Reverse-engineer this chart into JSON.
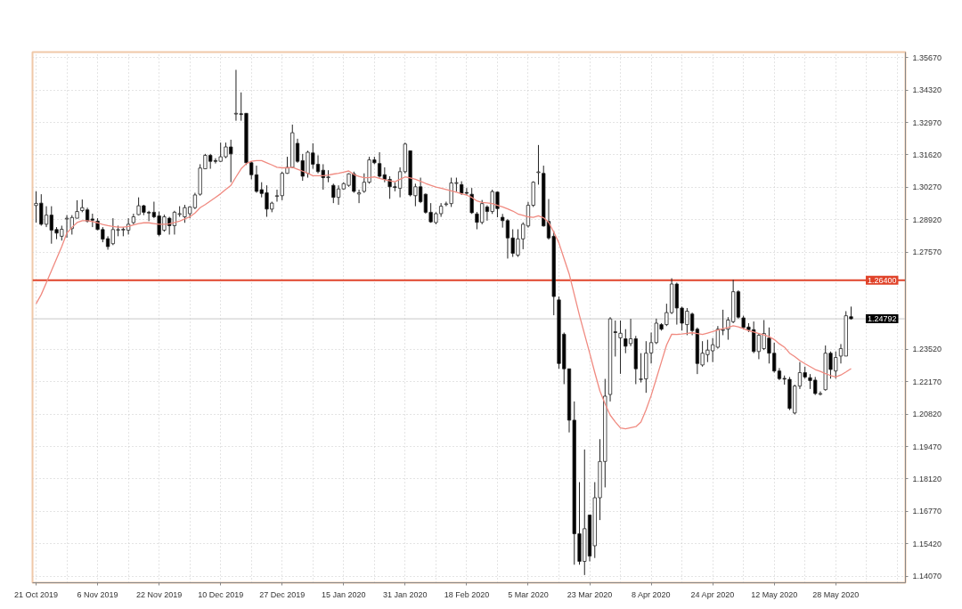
{
  "chart_data": {
    "type": "candlestick",
    "categories": [
      "21 Oct 2019",
      null,
      null,
      null,
      null,
      null,
      null,
      null,
      null,
      null,
      null,
      null,
      "6 Nov 2019",
      null,
      null,
      null,
      null,
      null,
      null,
      null,
      null,
      null,
      null,
      null,
      "22 Nov 2019",
      null,
      null,
      null,
      null,
      null,
      null,
      null,
      null,
      null,
      null,
      null,
      "10 Dec 2019",
      null,
      null,
      null,
      null,
      null,
      null,
      null,
      null,
      null,
      null,
      null,
      "27 Dec 2019",
      null,
      null,
      null,
      null,
      null,
      null,
      null,
      null,
      null,
      null,
      null,
      "15 Jan 2020",
      null,
      null,
      null,
      null,
      null,
      null,
      null,
      null,
      null,
      null,
      null,
      "31 Jan 2020",
      null,
      null,
      null,
      null,
      null,
      null,
      null,
      null,
      null,
      null,
      null,
      "18 Feb 2020",
      null,
      null,
      null,
      null,
      null,
      null,
      null,
      null,
      null,
      null,
      null,
      "5 Mar 2020",
      null,
      null,
      null,
      null,
      null,
      null,
      null,
      null,
      null,
      null,
      null,
      "23 Mar 2020",
      null,
      null,
      null,
      null,
      null,
      null,
      null,
      null,
      null,
      null,
      null,
      "8 Apr 2020",
      null,
      null,
      null,
      null,
      null,
      null,
      null,
      null,
      null,
      null,
      null,
      "24 Apr 2020",
      null,
      null,
      null,
      null,
      null,
      null,
      null,
      null,
      null,
      null,
      null,
      "12 May 2020",
      null,
      null,
      null,
      null,
      null,
      null,
      null,
      null,
      null,
      null,
      null,
      "28 May 2020",
      null,
      null,
      null
    ],
    "ohlc": [
      [
        1.2951,
        1.301,
        1.288,
        1.296
      ],
      [
        1.2961,
        1.2998,
        1.2867,
        1.2873
      ],
      [
        1.2873,
        1.2948,
        1.2861,
        1.2911
      ],
      [
        1.2911,
        1.2948,
        1.2792,
        1.2848
      ],
      [
        1.2851,
        1.2861,
        1.2811,
        1.2836
      ],
      [
        1.2823,
        1.2867,
        1.2805,
        1.2852
      ],
      [
        1.2895,
        1.2911,
        1.2817,
        1.2898
      ],
      [
        1.2855,
        1.2911,
        1.283,
        1.2901
      ],
      [
        1.2898,
        1.2973,
        1.2898,
        1.2926
      ],
      [
        1.293,
        1.2976,
        1.2923,
        1.2942
      ],
      [
        1.2933,
        1.2942,
        1.288,
        1.2886
      ],
      [
        1.2895,
        1.2917,
        1.2861,
        1.289
      ],
      [
        1.2886,
        1.2898,
        1.2848,
        1.2851
      ],
      [
        1.2851,
        1.2861,
        1.2798,
        1.2811
      ],
      [
        1.2813,
        1.2823,
        1.2767,
        1.278
      ],
      [
        1.2792,
        1.2898,
        1.2786,
        1.2851
      ],
      [
        1.2848,
        1.2867,
        1.2823,
        1.2851
      ],
      [
        1.2849,
        1.2861,
        1.2823,
        1.2852
      ],
      [
        1.2848,
        1.2898,
        1.283,
        1.2873
      ],
      [
        1.288,
        1.2917,
        1.2873,
        1.2904
      ],
      [
        1.2913,
        1.2985,
        1.2911,
        1.295
      ],
      [
        1.295,
        1.2954,
        1.2911,
        1.2923
      ],
      [
        1.2923,
        1.2929,
        1.2886,
        1.292
      ],
      [
        1.2923,
        1.2967,
        1.2898,
        1.2904
      ],
      [
        1.2908,
        1.2926,
        1.2823,
        1.283
      ],
      [
        1.2848,
        1.2913,
        1.2842,
        1.2904
      ],
      [
        1.2898,
        1.2904,
        1.283,
        1.2867
      ],
      [
        1.2867,
        1.2929,
        1.283,
        1.2923
      ],
      [
        1.2914,
        1.2948,
        1.2904,
        1.2917
      ],
      [
        1.2904,
        1.2954,
        1.2879,
        1.2942
      ],
      [
        1.2917,
        1.2948,
        1.2898,
        1.2945
      ],
      [
        1.2942,
        1.3004,
        1.2936,
        1.2995
      ],
      [
        1.2998,
        1.3123,
        1.2992,
        1.3107
      ],
      [
        1.3104,
        1.3166,
        1.3104,
        1.316
      ],
      [
        1.316,
        1.3166,
        1.3104,
        1.3135
      ],
      [
        1.3138,
        1.3148,
        1.3126,
        1.3135
      ],
      [
        1.3135,
        1.3213,
        1.3133,
        1.3154
      ],
      [
        1.3154,
        1.3213,
        1.3148,
        1.3195
      ],
      [
        1.3195,
        1.3225,
        1.3048,
        1.3166
      ],
      [
        1.3332,
        1.3516,
        1.3304,
        1.3335
      ],
      [
        1.3333,
        1.3422,
        1.3304,
        1.333
      ],
      [
        1.3335,
        1.3335,
        1.312,
        1.3129
      ],
      [
        1.3129,
        1.3135,
        1.306,
        1.3079
      ],
      [
        1.3079,
        1.3117,
        1.3004,
        1.301
      ],
      [
        1.3017,
        1.3048,
        1.2985,
        1.3001
      ],
      [
        1.3004,
        1.3035,
        1.2904,
        1.2936
      ],
      [
        1.2936,
        1.2967,
        1.2923,
        1.2961
      ],
      [
        1.2989,
        1.3017,
        1.2967,
        1.2992
      ],
      [
        1.2992,
        1.3092,
        1.2973,
        1.3085
      ],
      [
        1.3085,
        1.3154,
        1.3083,
        1.311
      ],
      [
        1.311,
        1.3288,
        1.3107,
        1.3254
      ],
      [
        1.321,
        1.3229,
        1.3129,
        1.3135
      ],
      [
        1.3138,
        1.3166,
        1.3054,
        1.3073
      ],
      [
        1.3085,
        1.3179,
        1.3067,
        1.3173
      ],
      [
        1.317,
        1.321,
        1.3104,
        1.3123
      ],
      [
        1.3123,
        1.316,
        1.3085,
        1.3092
      ],
      [
        1.3098,
        1.3123,
        1.3017,
        1.3067
      ],
      [
        1.3067,
        1.3098,
        1.3048,
        1.307
      ],
      [
        1.3035,
        1.3042,
        1.2961,
        1.2985
      ],
      [
        1.2985,
        1.3035,
        1.2954,
        1.302
      ],
      [
        1.302,
        1.3048,
        1.3017,
        1.3042
      ],
      [
        1.3035,
        1.3085,
        1.3029,
        1.3083
      ],
      [
        1.3083,
        1.3092,
        1.3004,
        1.301
      ],
      [
        1.2999,
        1.3017,
        1.2961,
        1.3004
      ],
      [
        1.301,
        1.3085,
        1.3004,
        1.3048
      ],
      [
        1.3048,
        1.3154,
        1.3042,
        1.3141
      ],
      [
        1.3141,
        1.3154,
        1.3123,
        1.3129
      ],
      [
        1.3126,
        1.3173,
        1.3067,
        1.3073
      ],
      [
        1.3079,
        1.311,
        1.3048,
        1.306
      ],
      [
        1.306,
        1.3073,
        1.2979,
        1.3029
      ],
      [
        1.3029,
        1.3048,
        1.301,
        1.3026
      ],
      [
        1.3023,
        1.311,
        1.2985,
        1.3092
      ],
      [
        1.3092,
        1.3213,
        1.3085,
        1.3207
      ],
      [
        1.3179,
        1.3179,
        1.2989,
        1.2995
      ],
      [
        1.2992,
        1.3042,
        1.2948,
        1.3029
      ],
      [
        1.3029,
        1.3067,
        1.2961,
        1.2967
      ],
      [
        1.2998,
        1.3001,
        1.2917,
        1.2923
      ],
      [
        1.2923,
        1.2961,
        1.2879,
        1.2883
      ],
      [
        1.288,
        1.2923,
        1.2873,
        1.2917
      ],
      [
        1.2917,
        1.2961,
        1.2904,
        1.2948
      ],
      [
        1.2955,
        1.2967,
        1.2948,
        1.2958
      ],
      [
        1.2959,
        1.3067,
        1.2945,
        1.3045
      ],
      [
        1.3043,
        1.3067,
        1.3009,
        1.3046
      ],
      [
        1.3038,
        1.3052,
        1.2995,
        1.3002
      ],
      [
        1.3005,
        1.3024,
        1.2995,
        1.3002
      ],
      [
        1.2998,
        1.3024,
        1.2916,
        1.2921
      ],
      [
        1.2916,
        1.2924,
        1.2852,
        1.2881
      ],
      [
        1.2881,
        1.2974,
        1.2873,
        1.2959
      ],
      [
        1.2945,
        1.2952,
        1.2888,
        1.2926
      ],
      [
        1.2926,
        1.3017,
        1.2916,
        1.3009
      ],
      [
        1.3007,
        1.3009,
        1.2902,
        1.2938
      ],
      [
        1.2902,
        1.2916,
        1.2859,
        1.2888
      ],
      [
        1.2888,
        1.2895,
        1.273,
        1.2816
      ],
      [
        1.2816,
        1.2852,
        1.2737,
        1.2752
      ],
      [
        1.2744,
        1.2852,
        1.2737,
        1.2812
      ],
      [
        1.2812,
        1.2881,
        1.2769,
        1.2873
      ],
      [
        1.2866,
        1.2966,
        1.2859,
        1.2952
      ],
      [
        1.2952,
        1.3052,
        1.2945,
        1.3048
      ],
      [
        1.3088,
        1.3203,
        1.3038,
        1.3091
      ],
      [
        1.3085,
        1.3117,
        1.2863,
        1.2866
      ],
      [
        1.2885,
        1.2978,
        1.2809,
        1.2816
      ],
      [
        1.2823,
        1.2845,
        1.2494,
        1.2572
      ],
      [
        1.2558,
        1.2572,
        1.2271,
        1.2293
      ],
      [
        1.2415,
        1.2422,
        1.2207,
        1.2271
      ],
      [
        1.2271,
        1.2271,
        1.2006,
        1.2057
      ],
      [
        1.2057,
        1.2135,
        1.1455,
        1.1584
      ],
      [
        1.1584,
        1.1799,
        1.1455,
        1.1469
      ],
      [
        1.1469,
        1.1935,
        1.1412,
        1.1605
      ],
      [
        1.1662,
        1.1662,
        1.1469,
        1.1491
      ],
      [
        1.1534,
        1.1799,
        1.1483,
        1.1734
      ],
      [
        1.1734,
        1.1978,
        1.1641,
        1.1885
      ],
      [
        1.1885,
        1.2229,
        1.1777,
        1.2157
      ],
      [
        1.2164,
        1.2486,
        1.2135,
        1.2479
      ],
      [
        1.2425,
        1.2472,
        1.2322,
        1.2422
      ],
      [
        1.24,
        1.2472,
        1.225,
        1.2419
      ],
      [
        1.2396,
        1.2436,
        1.2336,
        1.2365
      ],
      [
        1.2376,
        1.2479,
        1.2365,
        1.2396
      ],
      [
        1.2396,
        1.2408,
        1.2207,
        1.2271
      ],
      [
        1.2226,
        1.2336,
        1.2214,
        1.2229
      ],
      [
        1.2229,
        1.2386,
        1.2171,
        1.2336
      ],
      [
        1.2337,
        1.2422,
        1.2293,
        1.238
      ],
      [
        1.238,
        1.248,
        1.2374,
        1.2461
      ],
      [
        1.2455,
        1.2461,
        1.243,
        1.2436
      ],
      [
        1.2455,
        1.2542,
        1.2449,
        1.2505
      ],
      [
        1.2505,
        1.2648,
        1.2499,
        1.2624
      ],
      [
        1.2624,
        1.263,
        1.2455,
        1.2524
      ],
      [
        1.2524,
        1.253,
        1.243,
        1.2461
      ],
      [
        1.2455,
        1.2524,
        1.2411,
        1.2511
      ],
      [
        1.2499,
        1.2505,
        1.2411,
        1.243
      ],
      [
        1.2436,
        1.2443,
        1.2249,
        1.2293
      ],
      [
        1.2287,
        1.2386,
        1.228,
        1.2336
      ],
      [
        1.233,
        1.2392,
        1.2299,
        1.2349
      ],
      [
        1.2346,
        1.2399,
        1.2299,
        1.2371
      ],
      [
        1.2361,
        1.2449,
        1.2355,
        1.2436
      ],
      [
        1.2431,
        1.2517,
        1.2411,
        1.2434
      ],
      [
        1.2436,
        1.2486,
        1.2392,
        1.2474
      ],
      [
        1.2467,
        1.2642,
        1.2461,
        1.2592
      ],
      [
        1.2592,
        1.2598,
        1.248,
        1.2486
      ],
      [
        1.2483,
        1.2492,
        1.2436,
        1.2443
      ],
      [
        1.2445,
        1.2461,
        1.2424,
        1.2434
      ],
      [
        1.2434,
        1.2468,
        1.2336,
        1.2343
      ],
      [
        1.2343,
        1.2418,
        1.2311,
        1.2411
      ],
      [
        1.2355,
        1.2474,
        1.2349,
        1.2418
      ],
      [
        1.2399,
        1.2443,
        1.2293,
        1.2336
      ],
      [
        1.2336,
        1.238,
        1.2255,
        1.2262
      ],
      [
        1.2262,
        1.2274,
        1.2224,
        1.223
      ],
      [
        1.2231,
        1.2243,
        1.2205,
        1.2228
      ],
      [
        1.2227,
        1.2237,
        1.2099,
        1.2106
      ],
      [
        1.2087,
        1.2205,
        1.2081,
        1.2199
      ],
      [
        1.2199,
        1.2299,
        1.2187,
        1.2255
      ],
      [
        1.2255,
        1.228,
        1.223,
        1.2237
      ],
      [
        1.2234,
        1.2249,
        1.2187,
        1.2222
      ],
      [
        1.2224,
        1.2237,
        1.2162,
        1.2168
      ],
      [
        1.2165,
        1.2177,
        1.216,
        1.2168
      ],
      [
        1.2184,
        1.2368,
        1.218,
        1.2336
      ],
      [
        1.2336,
        1.2343,
        1.223,
        1.2268
      ],
      [
        1.2262,
        1.2343,
        1.223,
        1.2318
      ],
      [
        1.2324,
        1.2374,
        1.2293,
        1.2355
      ],
      [
        1.2324,
        1.2511,
        1.2324,
        1.2492
      ],
      [
        1.2488,
        1.253,
        1.2476,
        1.24792
      ]
    ],
    "series": [
      {
        "type": "line",
        "color": "#f08a80",
        "values": [
          1.2542,
          1.258,
          1.263,
          1.268,
          1.273,
          1.278,
          1.2836,
          1.286,
          1.288,
          1.2888,
          1.2888,
          1.2884,
          1.2879,
          1.2872,
          1.2867,
          1.2864,
          1.2861,
          1.2861,
          1.2864,
          1.287,
          1.2876,
          1.2879,
          1.2879,
          1.2876,
          1.2873,
          1.2873,
          1.2875,
          1.288,
          1.2886,
          1.2895,
          1.2904,
          1.292,
          1.2942,
          1.2955,
          1.297,
          1.2985,
          1.3,
          1.3018,
          1.3035,
          1.307,
          1.3104,
          1.3125,
          1.3135,
          1.3138,
          1.3138,
          1.3129,
          1.312,
          1.311,
          1.3108,
          1.3108,
          1.311,
          1.3102,
          1.3094,
          1.3085,
          1.3075,
          1.3075,
          1.3075,
          1.3078,
          1.3082,
          1.3085,
          1.309,
          1.3095,
          1.308,
          1.3072,
          1.3067,
          1.3068,
          1.307,
          1.3064,
          1.3058,
          1.3054,
          1.305,
          1.306,
          1.307,
          1.3066,
          1.306,
          1.3052,
          1.3043,
          1.3035,
          1.3028,
          1.3023,
          1.3018,
          1.3012,
          1.3006,
          1.3,
          1.2994,
          1.2985,
          1.297,
          1.2964,
          1.2962,
          1.2959,
          1.2952,
          1.2945,
          1.2937,
          1.2928,
          1.2916,
          1.291,
          1.2904,
          1.2902,
          1.2908,
          1.29,
          1.2881,
          1.284,
          1.2795,
          1.273,
          1.2666,
          1.258,
          1.2494,
          1.2415,
          1.2336,
          1.2255,
          1.2178,
          1.2125,
          1.2078,
          1.205,
          1.2025,
          1.2021,
          1.2026,
          1.203,
          1.2049,
          1.21,
          1.216,
          1.223,
          1.23,
          1.237,
          1.2415,
          1.2414,
          1.2416,
          1.2419,
          1.2421,
          1.2418,
          1.2414,
          1.242,
          1.2426,
          1.2433,
          1.2438,
          1.2443,
          1.245,
          1.2446,
          1.2438,
          1.243,
          1.2424,
          1.2418,
          1.2412,
          1.2405,
          1.2393,
          1.2375,
          1.2361,
          1.2336,
          1.2322,
          1.2305,
          1.2292,
          1.228,
          1.2268,
          1.226,
          1.2251,
          1.2243,
          1.2237,
          1.2245,
          1.2258,
          1.2272
        ]
      }
    ],
    "ylim": [
      1.138,
      1.359
    ],
    "yticks": [
      {
        "value": 1.3567,
        "label": "1.35670"
      },
      {
        "value": 1.3432,
        "label": "1.34320"
      },
      {
        "value": 1.3297,
        "label": "1.32970"
      },
      {
        "value": 1.3162,
        "label": "1.31620"
      },
      {
        "value": 1.3027,
        "label": "1.30270"
      },
      {
        "value": 1.2892,
        "label": "1.28920"
      },
      {
        "value": 1.2757,
        "label": "1.27570"
      },
      {
        "value": 1.2352,
        "label": "1.23520"
      },
      {
        "value": 1.2217,
        "label": "1.22170"
      },
      {
        "value": 1.2082,
        "label": "1.20820"
      },
      {
        "value": 1.1947,
        "label": "1.19470"
      },
      {
        "value": 1.1812,
        "label": "1.18120"
      },
      {
        "value": 1.1677,
        "label": "1.16770"
      },
      {
        "value": 1.1542,
        "label": "1.15420"
      },
      {
        "value": 1.1407,
        "label": "1.14070"
      }
    ],
    "grid": true,
    "ref_lines": [
      {
        "axis": "y",
        "value": 1.264,
        "label": "1.26400",
        "color": "#e0432a"
      },
      {
        "axis": "y",
        "value": 1.24792,
        "label": "1.24792",
        "color": "#c8c8c8"
      }
    ]
  }
}
